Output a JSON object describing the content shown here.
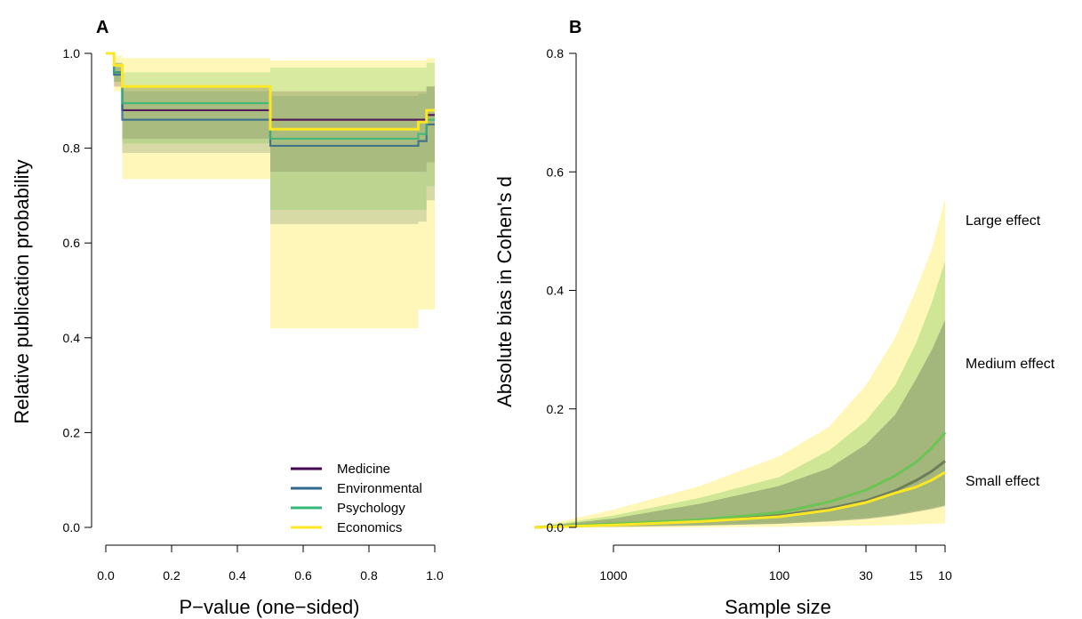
{
  "chart_data": [
    {
      "panel": "A",
      "type": "line",
      "xlabel": "P−value (one−sided)",
      "ylabel": "Relative publication probability",
      "xlim": [
        0,
        1
      ],
      "ylim": [
        0,
        1
      ],
      "xticks": [
        "0.0",
        "0.2",
        "0.4",
        "0.6",
        "0.8",
        "1.0"
      ],
      "yticks": [
        "0.0",
        "0.2",
        "0.4",
        "0.6",
        "0.8",
        "1.0"
      ],
      "legend_position": "bottom-right",
      "step_breaks": [
        0,
        0.025,
        0.05,
        0.5,
        0.95,
        0.975,
        1
      ],
      "series": [
        {
          "name": "Medicine",
          "color": "#440154",
          "values": [
            1.0,
            0.96,
            0.88,
            0.86,
            0.86,
            0.87
          ],
          "lower": [
            1.0,
            0.93,
            0.82,
            0.75,
            0.75,
            0.77
          ],
          "upper": [
            1.0,
            0.98,
            0.93,
            0.92,
            0.92,
            0.93
          ]
        },
        {
          "name": "Environmental",
          "color": "#31688e",
          "values": [
            1.0,
            0.955,
            0.86,
            0.805,
            0.815,
            0.85
          ],
          "lower": [
            1.0,
            0.94,
            0.79,
            0.64,
            0.645,
            0.69
          ],
          "upper": [
            1.0,
            0.97,
            0.92,
            0.91,
            0.915,
            0.93
          ]
        },
        {
          "name": "Psychology",
          "color": "#35b779",
          "values": [
            1.0,
            0.96,
            0.895,
            0.82,
            0.83,
            0.86
          ],
          "lower": [
            1.0,
            0.94,
            0.81,
            0.67,
            0.67,
            0.72
          ],
          "upper": [
            1.0,
            0.98,
            0.96,
            0.97,
            0.97,
            0.98
          ]
        },
        {
          "name": "Economics",
          "color": "#fde725",
          "values": [
            1.0,
            0.975,
            0.93,
            0.84,
            0.855,
            0.88
          ],
          "lower": [
            1.0,
            0.92,
            0.735,
            0.42,
            0.46,
            0.46
          ],
          "upper": [
            1.0,
            0.995,
            0.99,
            0.985,
            0.985,
            0.99
          ]
        }
      ]
    },
    {
      "panel": "B",
      "type": "line",
      "xlabel": "Sample size",
      "ylabel": "Absolute bias in Cohen's d",
      "x_scale": "log-reversed",
      "xticks": [
        "1000",
        "100",
        "30",
        "15",
        "10"
      ],
      "yticks": [
        "0.0",
        "0.2",
        "0.4",
        "0.6",
        "0.8"
      ],
      "ylim": [
        0,
        0.8
      ],
      "x": [
        3000,
        1000,
        300,
        100,
        50,
        30,
        20,
        15,
        12,
        10
      ],
      "series": [
        {
          "name": "",
          "color": "#6f7d5a",
          "values": [
            0.0,
            0.005,
            0.011,
            0.02,
            0.032,
            0.045,
            0.062,
            0.079,
            0.095,
            0.112
          ],
          "lower": [
            0.0,
            0.001,
            0.003,
            0.006,
            0.01,
            0.014,
            0.02,
            0.026,
            0.031,
            0.036
          ],
          "upper": [
            0.0,
            0.015,
            0.04,
            0.07,
            0.1,
            0.14,
            0.19,
            0.25,
            0.3,
            0.35
          ]
        },
        {
          "name": "",
          "color": "#6cc454",
          "values": [
            0.0,
            0.006,
            0.013,
            0.025,
            0.043,
            0.063,
            0.087,
            0.11,
            0.134,
            0.16
          ],
          "lower": [
            0.0,
            0.002,
            0.004,
            0.007,
            0.011,
            0.016,
            0.022,
            0.028,
            0.033,
            0.038
          ],
          "upper": [
            0.0,
            0.02,
            0.05,
            0.085,
            0.13,
            0.18,
            0.24,
            0.31,
            0.38,
            0.45
          ]
        },
        {
          "name": "",
          "color": "#fde725",
          "values": [
            0.0,
            0.004,
            0.01,
            0.018,
            0.029,
            0.042,
            0.058,
            0.068,
            0.08,
            0.093
          ],
          "lower": [
            0.0,
            0.0,
            0.0,
            0.001,
            0.002,
            0.003,
            0.004,
            0.005,
            0.006,
            0.007
          ],
          "upper": [
            0.0,
            0.03,
            0.07,
            0.12,
            0.17,
            0.24,
            0.32,
            0.4,
            0.47,
            0.555
          ]
        }
      ],
      "annotations": [
        "Large effect",
        "Medium effect",
        "Small effect"
      ]
    }
  ]
}
